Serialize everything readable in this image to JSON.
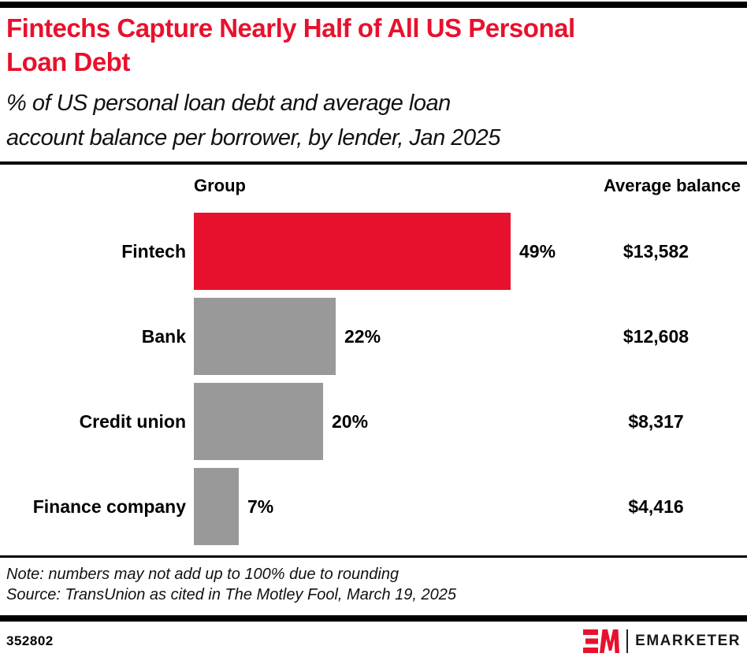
{
  "page": {
    "title_lines": [
      "Fintechs Capture Nearly Half of All US Personal",
      "Loan Debt"
    ],
    "subtitle_lines": [
      "% of US personal loan debt and average loan",
      "account balance per borrower, by lender, Jan 2025"
    ]
  },
  "chart_data": {
    "type": "bar",
    "orientation": "horizontal",
    "title": "Fintechs Capture Nearly Half of All US Personal Loan Debt",
    "subtitle": "% of US personal loan debt and average loan account balance per borrower, by lender, Jan 2025",
    "column_headers": {
      "group": "Group",
      "balance": "Average balance"
    },
    "categories": [
      "Fintech",
      "Bank",
      "Credit union",
      "Finance company"
    ],
    "series": [
      {
        "name": "% of US personal loan debt",
        "unit": "percent",
        "values": [
          49,
          22,
          20,
          7
        ],
        "labels": [
          "49%",
          "22%",
          "20%",
          "7%"
        ]
      },
      {
        "name": "Average loan account balance per borrower",
        "unit": "USD",
        "values": [
          13582,
          12608,
          8317,
          4416
        ],
        "labels": [
          "$13,582",
          "$12,608",
          "$8,317",
          "$4,416"
        ]
      }
    ],
    "bar_colors": [
      "#E8112D",
      "#999999",
      "#999999",
      "#999999"
    ],
    "xlim": [
      0,
      49
    ],
    "grid": false,
    "legend": false
  },
  "notes": {
    "note": "Note: numbers may not add up to 100% due to rounding",
    "source": "Source: TransUnion as cited in The Motley Fool, March 19, 2025"
  },
  "footer": {
    "chart_id": "352802",
    "brand_name": "EMARKETER"
  },
  "colors": {
    "accent_red": "#E8112D",
    "bar_gray": "#999999",
    "rule_black": "#000000"
  }
}
